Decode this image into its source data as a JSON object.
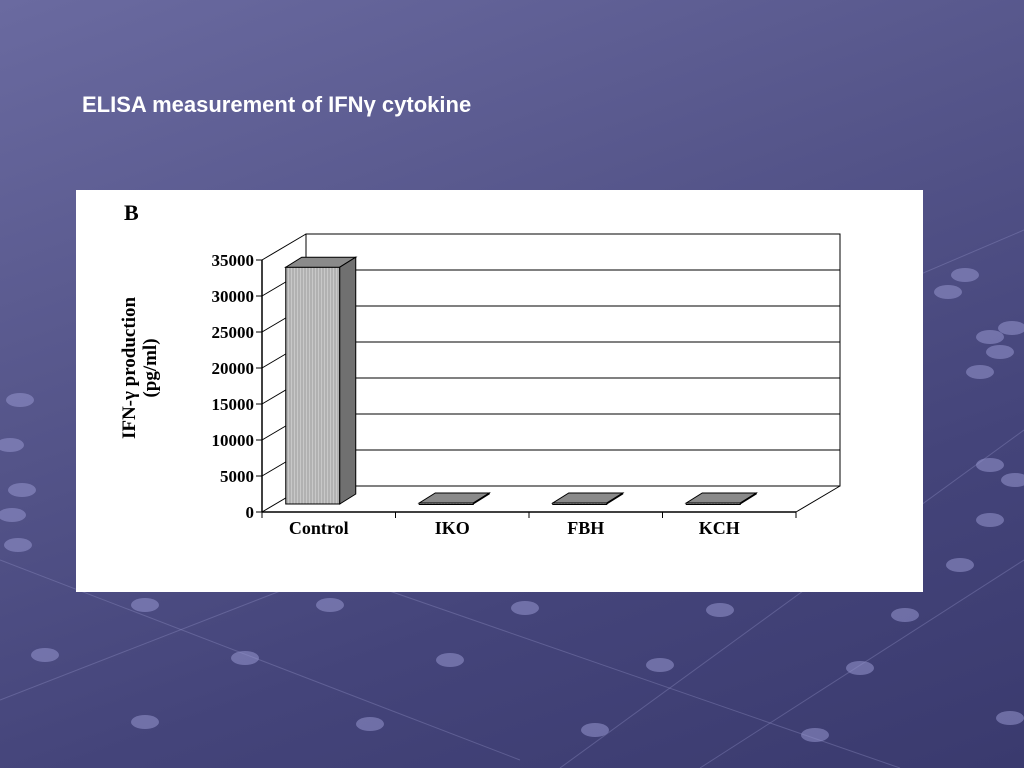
{
  "slide": {
    "title": "ELISA measurement of IFNγ cytokine"
  },
  "figure": {
    "panel_label": "B"
  },
  "chart_data": {
    "type": "bar",
    "categories": [
      "Control",
      "IKO",
      "FBH",
      "KCH"
    ],
    "values": [
      34000,
      0,
      0,
      0
    ],
    "ylabel_line1": "IFN-γ production",
    "ylabel_line2": "(pg/ml)",
    "ylim": [
      0,
      35000
    ],
    "yticks": [
      0,
      5000,
      10000,
      15000,
      20000,
      25000,
      30000,
      35000
    ],
    "grid": true,
    "legend": "none",
    "colors": {
      "bar_front": "#c8c8c8",
      "bar_top": "#8a8a8a",
      "bar_side": "#707070",
      "grid": "#000000"
    }
  }
}
